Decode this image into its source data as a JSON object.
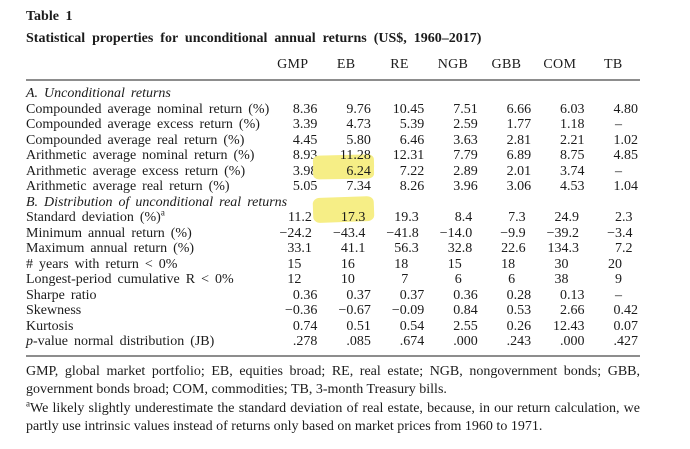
{
  "table": {
    "number": "Table 1",
    "title": "Statistical properties for unconditional annual returns (US$, 1960–2017)",
    "columns": [
      "GMP",
      "EB",
      "RE",
      "NGB",
      "GBB",
      "COM",
      "TB"
    ],
    "sections": [
      {
        "header": "A. Unconditional returns",
        "rows": [
          {
            "label": "Compounded average nominal return (%)",
            "values": [
              "8.36",
              "9.76",
              "10.45",
              "7.51",
              "6.66",
              "6.03",
              "4.80"
            ]
          },
          {
            "label": "Compounded average excess return (%)",
            "values": [
              "3.39",
              "4.73",
              "5.39",
              "2.59",
              "1.77",
              "1.18",
              "–"
            ]
          },
          {
            "label": "Compounded average real return (%)",
            "values": [
              "4.45",
              "5.80",
              "6.46",
              "3.63",
              "2.81",
              "2.21",
              "1.02"
            ]
          },
          {
            "label": "Arithmetic average nominal return (%)",
            "values": [
              "8.93",
              "11.28",
              "12.31",
              "7.79",
              "6.89",
              "8.75",
              "4.85"
            ]
          },
          {
            "label": "Arithmetic average excess return (%)",
            "values": [
              "3.98",
              "6.24",
              "7.22",
              "2.89",
              "2.01",
              "3.74",
              "–"
            ]
          },
          {
            "label": "Arithmetic average real return (%)",
            "values": [
              "5.05",
              "7.34",
              "8.26",
              "3.96",
              "3.06",
              "4.53",
              "1.04"
            ]
          }
        ]
      },
      {
        "header": "B. Distribution of unconditional real returns",
        "rows": [
          {
            "label": "Standard deviation (%)",
            "label_sup": "a",
            "values": [
              "11.2",
              "17.3",
              "19.3",
              "8.4",
              "7.3",
              "24.9",
              "2.3"
            ]
          },
          {
            "label": "Minimum annual return (%)",
            "values": [
              "−24.2",
              "−43.4",
              "−41.8",
              "−14.0",
              "−9.9",
              "−39.2",
              "−3.4"
            ]
          },
          {
            "label": "Maximum annual return (%)",
            "values": [
              "33.1",
              "41.1",
              "56.3",
              "32.8",
              "22.6",
              "134.3",
              "7.2"
            ]
          },
          {
            "label": "# years with return < 0%",
            "values": [
              "15",
              "16",
              "18",
              "15",
              "18",
              "30",
              "20"
            ]
          },
          {
            "label": "Longest-period cumulative R < 0%",
            "values": [
              "12",
              "10",
              "7",
              "6",
              "6",
              "38",
              "9"
            ]
          },
          {
            "label": "Sharpe ratio",
            "values": [
              "0.36",
              "0.37",
              "0.37",
              "0.36",
              "0.28",
              "0.13",
              "–"
            ]
          },
          {
            "label": "Skewness",
            "values": [
              "−0.36",
              "−0.67",
              "−0.09",
              "0.84",
              "0.53",
              "2.66",
              "0.42"
            ]
          },
          {
            "label": "Kurtosis",
            "values": [
              "0.74",
              "0.51",
              "0.54",
              "2.55",
              "0.26",
              "12.43",
              "0.07"
            ]
          },
          {
            "label": "p-value normal distribution (JB)",
            "italic_lead": "p",
            "values": [
              ".278",
              ".085",
              ".674",
              ".000",
              ".243",
              ".000",
              ".427"
            ]
          }
        ]
      }
    ],
    "highlights": [
      {
        "section": 0,
        "row": 3,
        "col": 1,
        "value": "11.28",
        "style": "lower"
      },
      {
        "section": 0,
        "row": 4,
        "col": 1,
        "value": "6.24",
        "style": "full"
      },
      {
        "section": 1,
        "row": 0,
        "col": 1,
        "value": "17.3",
        "style": "upper"
      }
    ],
    "highlight_color": "#f6ee86",
    "footnotes": [
      {
        "text": "GMP, global market portfolio; EB, equities broad; RE, real estate; NGB, nongovernment bonds; GBB, government bonds broad; COM, commodities; TB, 3-month Treasury bills."
      },
      {
        "marker": "a",
        "text": "We likely slightly underestimate the standard deviation of real estate, because, in our return calculation, we partly use intrinsic values instead of returns only based on market prices from 1960 to 1971."
      }
    ]
  }
}
